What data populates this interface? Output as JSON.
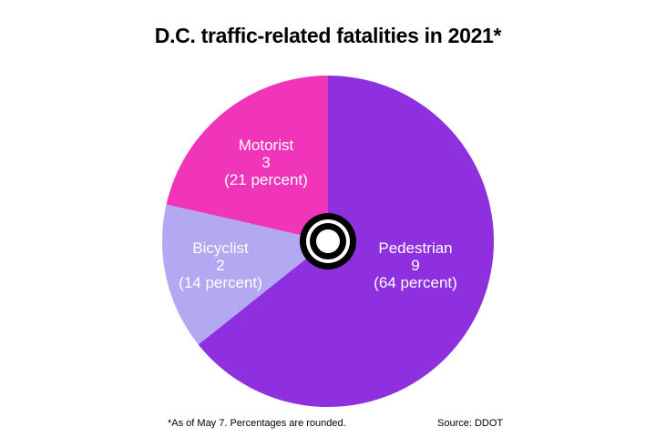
{
  "chart_data": {
    "type": "pie",
    "title": "D.C. traffic-related fatalities in 2021*",
    "slices": [
      {
        "name": "Pedestrian",
        "value": 9,
        "percent_label": "(64 percent)",
        "color": "#8e2fe0"
      },
      {
        "name": "Bicyclist",
        "value": 2,
        "percent_label": "(14 percent)",
        "color": "#b3a9f2"
      },
      {
        "name": "Motorist",
        "value": 3,
        "percent_label": "(21 percent)",
        "color": "#f135bb"
      }
    ],
    "center_icon": "tire-icon",
    "footnote": "*As of May 7. Percentages are rounded.",
    "source": "Source: DDOT"
  }
}
